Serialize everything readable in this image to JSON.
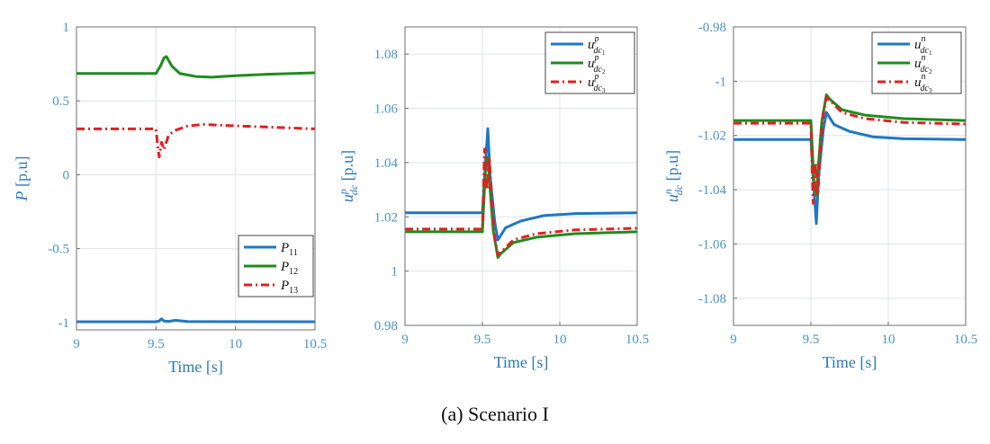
{
  "caption": "(a) Scenario I",
  "colors": {
    "axis": "#2a79b8",
    "tick": "#4a93c9",
    "grid": "#dfe3e7"
  },
  "chart_data": [
    {
      "type": "line",
      "title": "",
      "xlabel": "Time [s]",
      "ylabel_main": "P",
      "ylabel_unit": "[p.u]",
      "xlim": [
        9,
        10.5
      ],
      "ylim": [
        -1.05,
        1
      ],
      "xticks": [
        "9",
        "9.5",
        "10",
        "10.5"
      ],
      "xtick_values": [
        9,
        9.5,
        10,
        10.5
      ],
      "yticks": [
        "1",
        "0.5",
        "0",
        "-0.5",
        "-1"
      ],
      "ytick_values": [
        1,
        0.5,
        0,
        -0.5,
        -1
      ],
      "legend_position": "bottom-right",
      "series": [
        {
          "name": "P11",
          "label_main": "P",
          "label_sub": "11",
          "color": "#1f77c3",
          "dash": "solid",
          "x": [
            9,
            9.5,
            9.52,
            9.535,
            9.55,
            9.58,
            9.62,
            9.7,
            10.5
          ],
          "y": [
            -0.995,
            -0.995,
            -0.99,
            -0.975,
            -0.99,
            -0.993,
            -0.985,
            -0.994,
            -0.995
          ]
        },
        {
          "name": "P12",
          "label_main": "P",
          "label_sub": "12",
          "color": "#1e8c1e",
          "dash": "solid",
          "x": [
            9,
            9.5,
            9.53,
            9.55,
            9.565,
            9.6,
            9.65,
            9.75,
            9.85,
            10,
            10.2,
            10.5
          ],
          "y": [
            0.685,
            0.685,
            0.74,
            0.79,
            0.8,
            0.735,
            0.685,
            0.665,
            0.66,
            0.67,
            0.68,
            0.69
          ]
        },
        {
          "name": "P13",
          "label_main": "P",
          "label_sub": "13",
          "color": "#e02020",
          "dash": "dashdot",
          "x": [
            9,
            9.5,
            9.51,
            9.52,
            9.535,
            9.55,
            9.58,
            9.62,
            9.7,
            9.8,
            9.9,
            10.5
          ],
          "y": [
            0.31,
            0.31,
            0.2,
            0.12,
            0.22,
            0.17,
            0.27,
            0.3,
            0.33,
            0.34,
            0.335,
            0.31
          ]
        }
      ]
    },
    {
      "type": "line",
      "title": "",
      "xlabel": "Time [s]",
      "ylabel_main": "u",
      "ylabel_sub": "dc",
      "ylabel_sup": "p",
      "ylabel_unit": "[p.u]",
      "xlim": [
        9,
        10.5
      ],
      "ylim": [
        0.98,
        1.09
      ],
      "xticks": [
        "9",
        "9.5",
        "10",
        "10.5"
      ],
      "xtick_values": [
        9,
        9.5,
        10,
        10.5
      ],
      "yticks": [
        "1.08",
        "1.06",
        "1.04",
        "1.02",
        "1",
        "0.98"
      ],
      "ytick_values": [
        1.08,
        1.06,
        1.04,
        1.02,
        1,
        0.98
      ],
      "legend_position": "top-right",
      "series": [
        {
          "name": "u_dc1^p",
          "label_main": "u",
          "label_sub": "dc",
          "label_subsub": "1",
          "label_sup": "p",
          "color": "#1f77c3",
          "dash": "solid",
          "x": [
            9,
            9.5,
            9.52,
            9.535,
            9.55,
            9.58,
            9.6,
            9.65,
            9.75,
            9.9,
            10.1,
            10.5
          ],
          "y": [
            1.0215,
            1.0215,
            1.04,
            1.0525,
            1.035,
            1.018,
            1.0115,
            1.016,
            1.0185,
            1.0205,
            1.0212,
            1.0215
          ]
        },
        {
          "name": "u_dc2^p",
          "label_main": "u",
          "label_sub": "dc",
          "label_subsub": "2",
          "label_sup": "p",
          "color": "#1e8c1e",
          "dash": "solid",
          "x": [
            9,
            9.5,
            9.52,
            9.535,
            9.55,
            9.57,
            9.6,
            9.62,
            9.7,
            9.85,
            10.1,
            10.5
          ],
          "y": [
            1.0145,
            1.0145,
            1.038,
            1.042,
            1.03,
            1.015,
            1.005,
            1.0065,
            1.0105,
            1.0125,
            1.0138,
            1.0145
          ]
        },
        {
          "name": "u_dc3^p",
          "label_main": "u",
          "label_sub": "dc",
          "label_subsub": "3",
          "label_sup": "p",
          "color": "#e02020",
          "dash": "dashdot",
          "x": [
            9,
            9.5,
            9.515,
            9.53,
            9.545,
            9.56,
            9.58,
            9.6,
            9.62,
            9.7,
            9.85,
            10.1,
            10.5
          ],
          "y": [
            1.0155,
            1.0155,
            1.045,
            1.03,
            1.042,
            1.026,
            1.012,
            1.006,
            1.007,
            1.0115,
            1.0138,
            1.0152,
            1.0158
          ]
        }
      ]
    },
    {
      "type": "line",
      "title": "",
      "xlabel": "Time [s]",
      "ylabel_main": "u",
      "ylabel_sub": "dc",
      "ylabel_sup": "n",
      "ylabel_unit": "[p.u]",
      "xlim": [
        9,
        10.5
      ],
      "ylim": [
        -1.09,
        -0.98
      ],
      "xticks": [
        "9",
        "9.5",
        "10",
        "10.5"
      ],
      "xtick_values": [
        9,
        9.5,
        10,
        10.5
      ],
      "yticks": [
        "-0.98",
        "-1",
        "-1.02",
        "-1.04",
        "-1.06",
        "-1.08"
      ],
      "ytick_values": [
        -0.98,
        -1,
        -1.02,
        -1.04,
        -1.06,
        -1.08
      ],
      "legend_position": "top-right",
      "series": [
        {
          "name": "u_dc1^n",
          "label_main": "u",
          "label_sub": "dc",
          "label_subsub": "1",
          "label_sup": "n",
          "color": "#1f77c3",
          "dash": "solid",
          "x": [
            9,
            9.5,
            9.52,
            9.535,
            9.55,
            9.58,
            9.6,
            9.65,
            9.75,
            9.9,
            10.1,
            10.5
          ],
          "y": [
            -1.0215,
            -1.0215,
            -1.04,
            -1.0525,
            -1.035,
            -1.018,
            -1.0115,
            -1.016,
            -1.0185,
            -1.0205,
            -1.0212,
            -1.0215
          ]
        },
        {
          "name": "u_dc2^n",
          "label_main": "u",
          "label_sub": "dc",
          "label_subsub": "2",
          "label_sup": "n",
          "color": "#1e8c1e",
          "dash": "solid",
          "x": [
            9,
            9.5,
            9.52,
            9.535,
            9.55,
            9.57,
            9.6,
            9.62,
            9.7,
            9.85,
            10.1,
            10.5
          ],
          "y": [
            -1.0145,
            -1.0145,
            -1.038,
            -1.042,
            -1.03,
            -1.015,
            -1.005,
            -1.0065,
            -1.0105,
            -1.0125,
            -1.0138,
            -1.0145
          ]
        },
        {
          "name": "u_dc3^n",
          "label_main": "u",
          "label_sub": "dc",
          "label_subsub": "3",
          "label_sup": "n",
          "color": "#e02020",
          "dash": "dashdot",
          "x": [
            9,
            9.5,
            9.515,
            9.53,
            9.545,
            9.56,
            9.58,
            9.6,
            9.62,
            9.7,
            9.85,
            10.1,
            10.5
          ],
          "y": [
            -1.0155,
            -1.0155,
            -1.045,
            -1.03,
            -1.042,
            -1.026,
            -1.012,
            -1.006,
            -1.007,
            -1.0115,
            -1.0138,
            -1.0152,
            -1.0158
          ]
        }
      ]
    }
  ]
}
